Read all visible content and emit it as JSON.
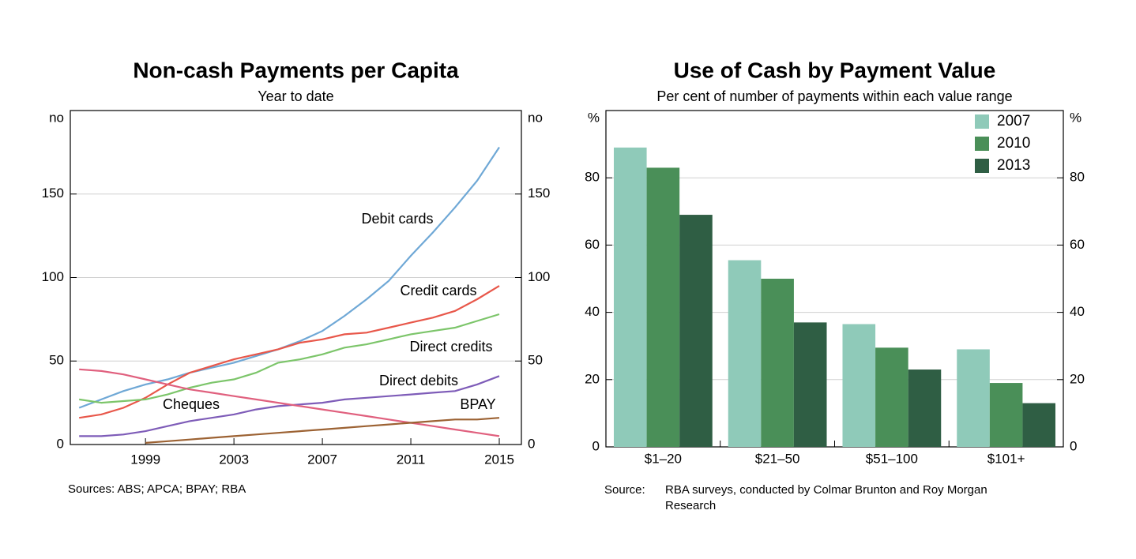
{
  "chart_data": [
    {
      "type": "line",
      "title": "Non-cash Payments per Capita",
      "subtitle": "Year to date",
      "y_label": "no",
      "y2_label": "no",
      "x": [
        1996,
        1997,
        1998,
        1999,
        2000,
        2001,
        2002,
        2003,
        2004,
        2005,
        2006,
        2007,
        2008,
        2009,
        2010,
        2011,
        2012,
        2013,
        2014,
        2015
      ],
      "series": [
        {
          "name": "Debit cards",
          "color": "#6fa8d6",
          "values": [
            22,
            27,
            32,
            36,
            39,
            43,
            46,
            49,
            53,
            57,
            62,
            68,
            77,
            87,
            98,
            113,
            127,
            142,
            158,
            178
          ]
        },
        {
          "name": "Credit cards",
          "color": "#e8574a",
          "values": [
            16,
            18,
            22,
            28,
            36,
            43,
            47,
            51,
            54,
            57,
            61,
            63,
            66,
            67,
            70,
            73,
            76,
            80,
            87,
            95
          ]
        },
        {
          "name": "Direct credits",
          "color": "#7cc56a",
          "values": [
            27,
            25,
            26,
            27,
            30,
            34,
            37,
            39,
            43,
            49,
            51,
            54,
            58,
            60,
            63,
            66,
            68,
            70,
            74,
            78
          ]
        },
        {
          "name": "Direct debits",
          "color": "#7e5cb8",
          "values": [
            5,
            5,
            6,
            8,
            11,
            14,
            16,
            18,
            21,
            23,
            24,
            25,
            27,
            28,
            29,
            30,
            31,
            32,
            36,
            41
          ]
        },
        {
          "name": "Cheques",
          "color": "#e0607e",
          "values": [
            45,
            44,
            42,
            39,
            36,
            33,
            31,
            29,
            27,
            25,
            23,
            21,
            19,
            17,
            15,
            13,
            11,
            9,
            7,
            5
          ]
        },
        {
          "name": "BPAY",
          "color": "#9c6233",
          "values": [
            null,
            null,
            null,
            1,
            2,
            3,
            4,
            5,
            6,
            7,
            8,
            9,
            10,
            11,
            12,
            13,
            14,
            15,
            15,
            16
          ]
        }
      ],
      "xlim": [
        1995.6,
        2016
      ],
      "xticks": [
        1999,
        2003,
        2007,
        2011,
        2015
      ],
      "ylim": [
        0,
        200
      ],
      "yticks": [
        0,
        50,
        100,
        150
      ],
      "y2lim": [
        0,
        200
      ],
      "y2ticks": [
        0,
        50,
        100,
        150
      ],
      "grid": true,
      "source": "Sources:  ABS; APCA; BPAY; RBA"
    },
    {
      "type": "bar",
      "title": "Use of Cash by Payment Value",
      "subtitle": "Per cent of number of payments within each value range",
      "y_label": "%",
      "y2_label": "%",
      "categories": [
        "$1–20",
        "$21–50",
        "$51–100",
        "$101+"
      ],
      "series": [
        {
          "name": "2007",
          "color": "#8fcab9",
          "values": [
            89,
            55.5,
            36.5,
            29
          ]
        },
        {
          "name": "2010",
          "color": "#4a8f58",
          "values": [
            83,
            50,
            29.5,
            19
          ]
        },
        {
          "name": "2013",
          "color": "#2f5e44",
          "values": [
            69,
            37,
            23,
            13
          ]
        }
      ],
      "ylim": [
        0,
        100
      ],
      "yticks": [
        0,
        20,
        40,
        60,
        80
      ],
      "y2lim": [
        0,
        100
      ],
      "y2ticks": [
        0,
        20,
        40,
        60,
        80
      ],
      "grid": true,
      "legend": "top-right",
      "source_label": "Source:",
      "source": "RBA surveys, conducted by Colmar Brunton and Roy Morgan Research"
    }
  ]
}
